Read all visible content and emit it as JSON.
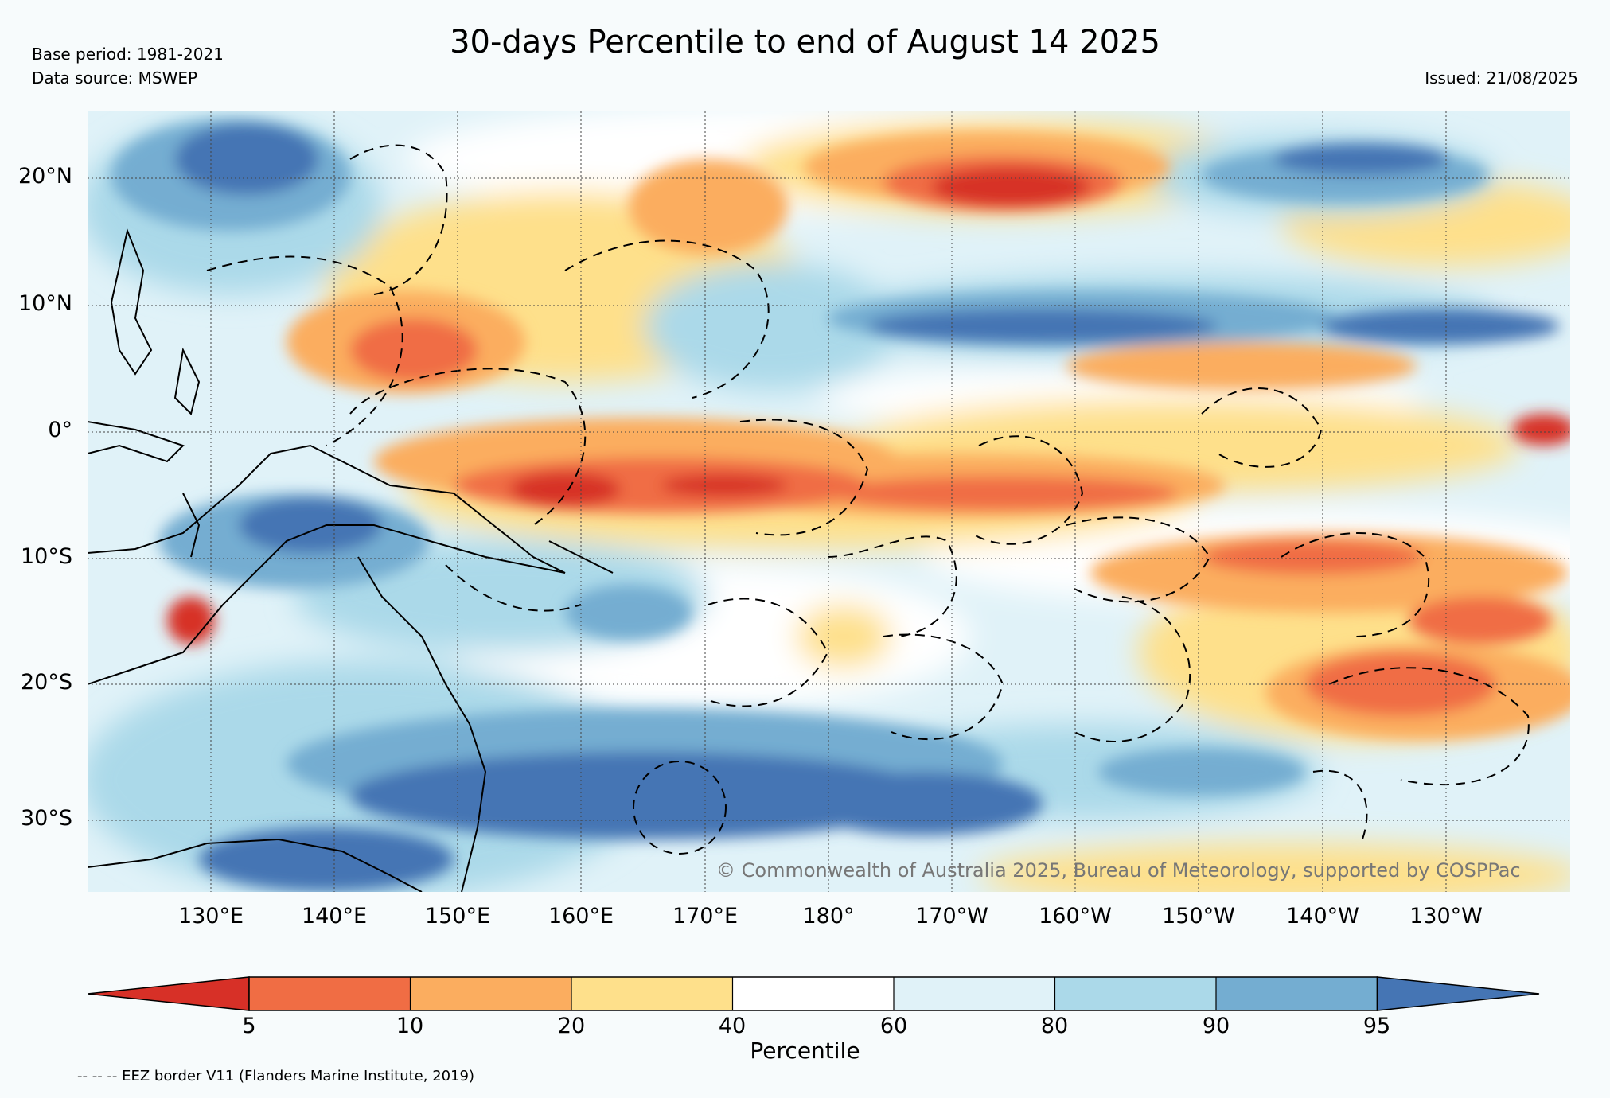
{
  "header": {
    "title": "30-days Percentile to end of August 14 2025",
    "base_period": "Base period: 1981-2021",
    "data_source": "Data source: MSWEP",
    "issued": "Issued: 21/08/2025"
  },
  "map": {
    "lat_labels": [
      "20°N",
      "10°N",
      "0°",
      "10°S",
      "20°S",
      "30°S"
    ],
    "lon_labels": [
      "130°E",
      "140°E",
      "150°E",
      "160°E",
      "170°E",
      "180°",
      "170°W",
      "160°W",
      "150°W",
      "140°W",
      "130°W"
    ],
    "copyright": "© Commonwealth of Australia 2025, Bureau of Meteorology, supported by COSPPac",
    "colors": {
      "below_5": "#d73027",
      "p5_10": "#f06d44",
      "p10_20": "#fbad5f",
      "p20_40": "#fee08b",
      "p40_60": "#ffffff",
      "p60_80": "#e0f2f8",
      "p80_90": "#abd9e9",
      "p90_95": "#74add1",
      "above_95": "#4575b4"
    }
  },
  "colorbar": {
    "label": "Percentile",
    "ticks": [
      "5",
      "10",
      "20",
      "40",
      "60",
      "80",
      "90",
      "95"
    ],
    "colors": [
      "#d73027",
      "#f06d44",
      "#fbad5f",
      "#fee08b",
      "#ffffff",
      "#e0f2f8",
      "#abd9e9",
      "#74add1",
      "#4575b4"
    ]
  },
  "footer": {
    "eez_note": "-- -- -- EEZ border V11 (Flanders Marine Institute, 2019)"
  }
}
